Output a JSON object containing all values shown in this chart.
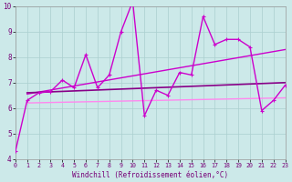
{
  "xlabel": "Windchill (Refroidissement éolien,°C)",
  "xlim": [
    0,
    23
  ],
  "ylim": [
    4,
    10
  ],
  "xticks": [
    0,
    1,
    2,
    3,
    4,
    5,
    6,
    7,
    8,
    9,
    10,
    11,
    12,
    13,
    14,
    15,
    16,
    17,
    18,
    19,
    20,
    21,
    22,
    23
  ],
  "yticks": [
    4,
    5,
    6,
    7,
    8,
    9,
    10
  ],
  "bg_color": "#cce9e9",
  "grid_color": "#aacfcf",
  "jagged": {
    "x": [
      0,
      1,
      2,
      3,
      4,
      5,
      6,
      7,
      8,
      9,
      10,
      11,
      12,
      13,
      14,
      15,
      16,
      17,
      18,
      19,
      20,
      21,
      22,
      23
    ],
    "y": [
      4.3,
      6.3,
      6.6,
      6.65,
      7.1,
      6.8,
      8.1,
      6.8,
      7.3,
      9.0,
      10.2,
      5.7,
      6.7,
      6.5,
      7.4,
      7.3,
      9.6,
      8.5,
      8.7,
      8.7,
      8.4,
      5.9,
      6.3,
      6.9
    ],
    "color": "#cc00cc",
    "lw": 1.0
  },
  "trend1": {
    "x": [
      1,
      23
    ],
    "y": [
      6.6,
      7.0
    ],
    "color": "#880088",
    "lw": 1.2
  },
  "trend2": {
    "x": [
      1,
      23
    ],
    "y": [
      6.55,
      8.3
    ],
    "color": "#cc00cc",
    "lw": 1.0
  },
  "trend3": {
    "x": [
      1,
      23
    ],
    "y": [
      6.2,
      6.4
    ],
    "color": "#ff88ee",
    "lw": 1.0
  }
}
